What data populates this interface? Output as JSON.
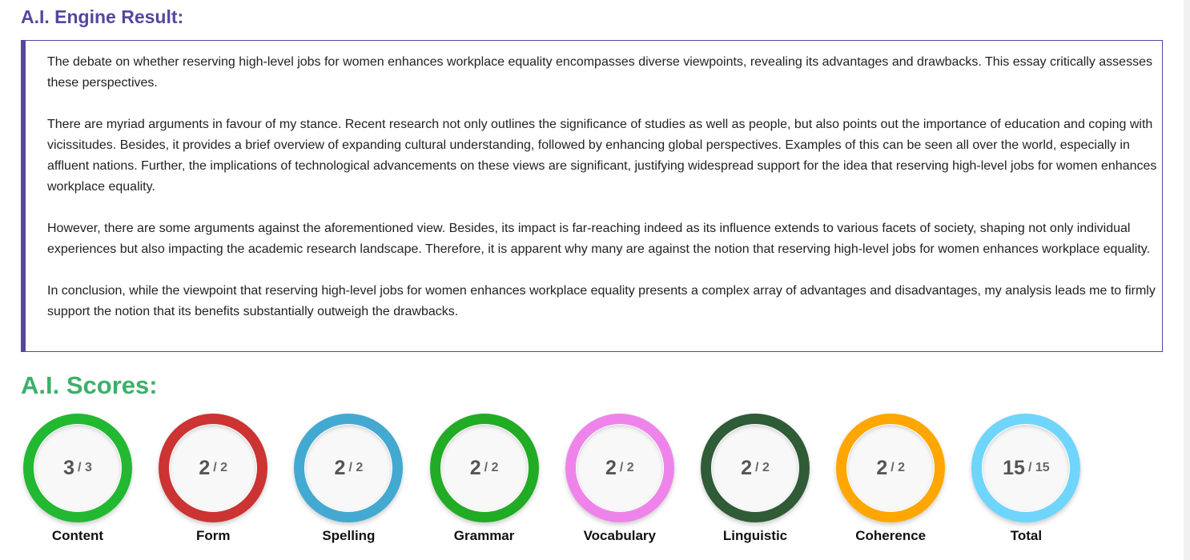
{
  "result": {
    "title": "A.I. Engine Result:",
    "paragraphs": [
      "The debate on whether reserving high-level jobs for women enhances workplace equality encompasses diverse viewpoints, revealing its advantages and drawbacks. This essay critically assesses these perspectives.",
      "There are myriad arguments in favour of my stance. Recent research not only outlines the significance of studies as well as people, but also points out the importance of education and coping with vicissitudes. Besides, it provides a brief overview of expanding cultural understanding, followed by enhancing global perspectives. Examples of this can be seen all over the world, especially in affluent nations. Further, the implications of technological advancements on these views are significant, justifying widespread support for the idea that reserving high-level jobs for women enhances workplace equality.",
      "However, there are some arguments against the aforementioned view. Besides, its impact is far-reaching indeed as its influence extends to various facets of society, shaping not only individual experiences but also impacting the academic research landscape. Therefore, it is apparent why many are against the notion that reserving high-level jobs for women enhances workplace equality.",
      "In conclusion, while the viewpoint that reserving high-level jobs for women enhances workplace equality presents a complex array of advantages and disadvantages, my analysis leads me to firmly support the notion that its benefits substantially outweigh the drawbacks."
    ]
  },
  "scores": {
    "title": "A.I. Scores:",
    "separator": "/",
    "items": [
      {
        "label": "Content",
        "score": 3,
        "max": 3,
        "color": "#22b832"
      },
      {
        "label": "Form",
        "score": 2,
        "max": 2,
        "color": "#cc3333"
      },
      {
        "label": "Spelling",
        "score": 2,
        "max": 2,
        "color": "#43a9d1"
      },
      {
        "label": "Grammar",
        "score": 2,
        "max": 2,
        "color": "#22ab24"
      },
      {
        "label": "Vocabulary",
        "score": 2,
        "max": 2,
        "color": "#ee84ea"
      },
      {
        "label": "Linguistic",
        "score": 2,
        "max": 2,
        "color": "#305b37"
      },
      {
        "label": "Coherence",
        "score": 2,
        "max": 2,
        "color": "#ffa600"
      },
      {
        "label": "Total",
        "score": 15,
        "max": 15,
        "color": "#6fd5fb"
      }
    ]
  }
}
